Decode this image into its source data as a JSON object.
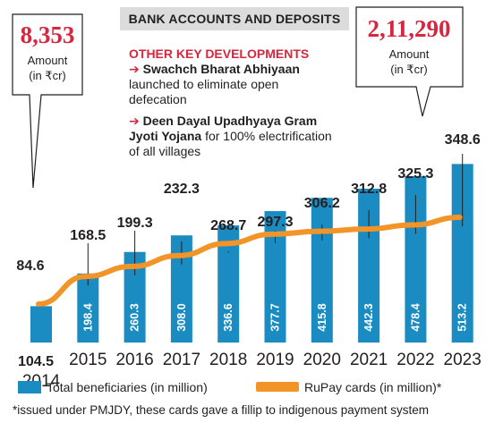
{
  "chart_data": {
    "type": "bar",
    "title": "BANK ACCOUNTS AND DEPOSITS",
    "categories": [
      "2014",
      "2015",
      "2016",
      "2017",
      "2018",
      "2019",
      "2020",
      "2021",
      "2022",
      "2023"
    ],
    "series": [
      {
        "name": "Total beneficiaries (in million)",
        "type": "bar",
        "values": [
          104.5,
          198.4,
          260.3,
          308.0,
          336.6,
          377.7,
          415.8,
          442.3,
          478.4,
          513.2
        ],
        "labels": [
          "104.5",
          "198.4",
          "260.3",
          "308.0",
          "336.6",
          "377.7",
          "415.8",
          "442.3",
          "478.4",
          "513.2"
        ]
      },
      {
        "name": "RuPay cards (in million)*",
        "type": "line",
        "values": [
          84.6,
          168.5,
          199.3,
          232.3,
          268.7,
          297.3,
          306.2,
          312.8,
          325.3,
          348.6
        ],
        "labels": [
          "84.6",
          "168.5",
          "199.3",
          "232.3",
          "268.7",
          "297.3",
          "306.2",
          "312.8",
          "325.3",
          "348.6"
        ]
      }
    ],
    "legend": "bottom",
    "grid": false,
    "colors": {
      "bar": "#1a8cc1",
      "line": "#f29427",
      "accent": "#d7263d"
    }
  },
  "callouts": [
    {
      "value": "8,353",
      "label_line1": "Amount",
      "label_line2": "(in ₹cr)"
    },
    {
      "value": "2,11,290",
      "label_line1": "Amount",
      "label_line2": "(in ₹cr)"
    }
  ],
  "key_developments": {
    "title": "OTHER KEY DEVELOPMENTS",
    "items": [
      {
        "name": "Swachch Bharat Abhiyaan",
        "text": "launched to eliminate open defecation"
      },
      {
        "name": "Deen Dayal Upadhyaya Gram Jyoti Yojana",
        "text": "for 100% electrification of all villages"
      }
    ]
  },
  "footnote": "*issued under PMJDY, these cards gave a fillip to indigenous payment system"
}
